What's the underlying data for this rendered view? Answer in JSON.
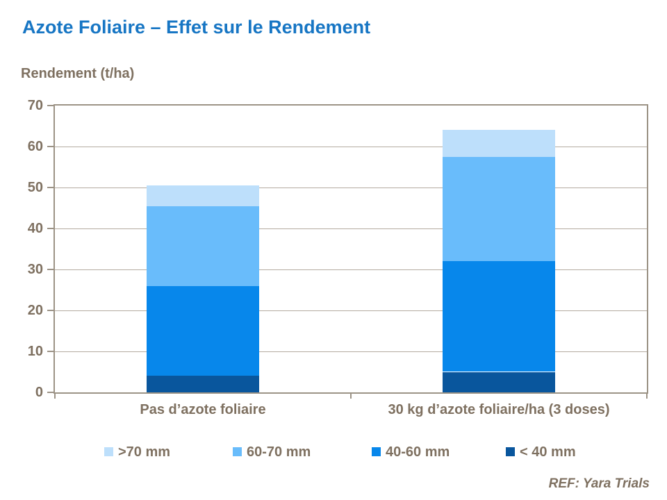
{
  "slide": {
    "title": "Azote Foliaire – Effet sur le Rendement",
    "axis_caption": "Rendement (t/ha)",
    "ref_note": "REF: Yara Trials"
  },
  "colors": {
    "title_text": "#1776C4",
    "body_text": "#7E7060",
    "plot_frame": "#9C9386",
    "gridline": "#B4ABA0",
    "background": "#FFFFFF"
  },
  "chart_data": {
    "type": "bar",
    "stacked": true,
    "title": "Azote Foliaire – Effet sur le Rendement",
    "ylabel": "Rendement (t/ha)",
    "ylim": [
      0,
      70
    ],
    "ytick_step": 10,
    "grid": true,
    "legend_position": "bottom",
    "categories": [
      "Pas d’azote foliaire",
      "30 kg d’azote foliaire/ha (3 doses)"
    ],
    "series": [
      {
        "name": ">70 mm",
        "color": "#BDDFFB",
        "values": [
          5.0,
          6.5
        ]
      },
      {
        "name": "60-70 mm",
        "color": "#69BCFB",
        "values": [
          19.5,
          25.5
        ]
      },
      {
        "name": "40-60 mm",
        "color": "#0787EB",
        "values": [
          22.0,
          27.0
        ]
      },
      {
        "name": "< 40 mm",
        "color": "#09569D",
        "values": [
          4.0,
          5.0
        ]
      }
    ],
    "stack_order_bottom_to_top": [
      "< 40 mm",
      "40-60 mm",
      "60-70 mm",
      ">70 mm"
    ],
    "stack_totals": [
      50.5,
      64.0
    ]
  }
}
